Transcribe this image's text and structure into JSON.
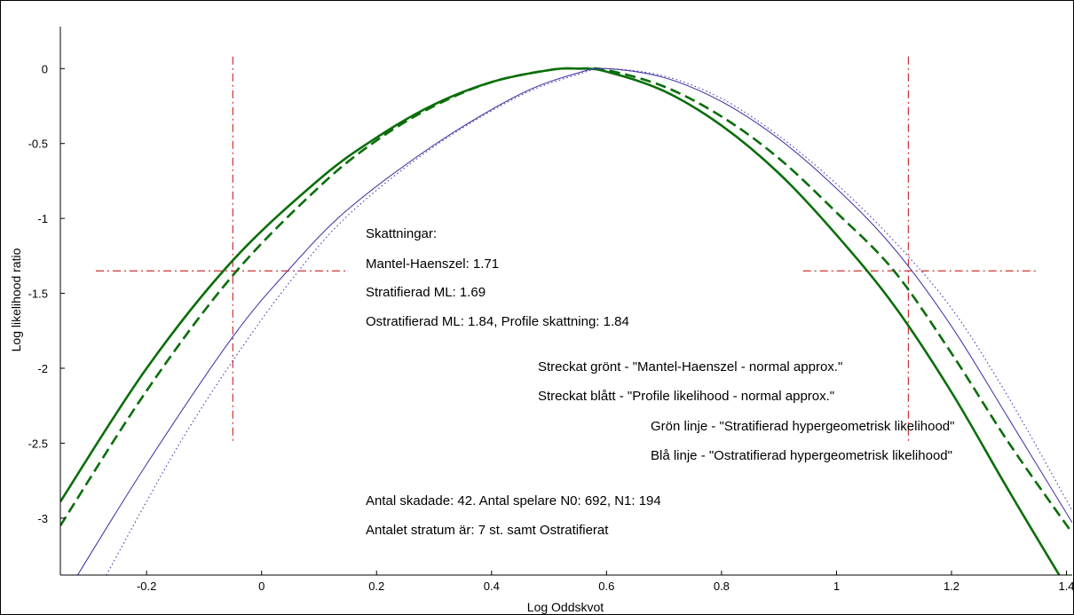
{
  "chart_data": {
    "type": "line",
    "title": "",
    "xlabel": "Log Oddskvot",
    "ylabel": "Log likelihood ratio",
    "xlim": [
      -0.35,
      1.41
    ],
    "ylim": [
      -3.38,
      0.28
    ],
    "xticks": [
      -0.2,
      0,
      0.2,
      0.4,
      0.6,
      0.8,
      1,
      1.2,
      1.4
    ],
    "xtick_labels": [
      "-0.2",
      "0",
      "0.2",
      "0.4",
      "0.6",
      "0.8",
      "1",
      "1.2",
      "1.4"
    ],
    "yticks": [
      0,
      -0.5,
      -1,
      -1.5,
      -2,
      -2.5,
      -3
    ],
    "ytick_labels": [
      "0",
      "-0.5",
      "-1",
      "-1.5",
      "-2",
      "-2.5",
      "-3"
    ],
    "grid": false,
    "colors": {
      "green": "#0a6e0a",
      "blue": "#4a3aa8",
      "reference": "#cc3333"
    },
    "series": [
      {
        "style": "green-solid",
        "x": [
          -0.35,
          -0.2,
          -0.05,
          0.1,
          0.2,
          0.3,
          0.4,
          0.5,
          0.55,
          0.6,
          0.7,
          0.8,
          0.9,
          1.0,
          1.1,
          1.2,
          1.3,
          1.4
        ],
        "y": [
          -2.89,
          -2.0,
          -1.28,
          -0.74,
          -0.46,
          -0.24,
          -0.09,
          -0.01,
          0.0,
          -0.02,
          -0.15,
          -0.38,
          -0.7,
          -1.11,
          -1.58,
          -2.16,
          -2.82,
          -3.46
        ]
      },
      {
        "style": "green-dashed",
        "x": [
          -0.35,
          -0.2,
          -0.05,
          0.1,
          0.2,
          0.3,
          0.4,
          0.5,
          0.55,
          0.6,
          0.7,
          0.8,
          0.9,
          1.0,
          1.1,
          1.2,
          1.3,
          1.41
        ],
        "y": [
          -3.05,
          -2.15,
          -1.38,
          -0.79,
          -0.48,
          -0.25,
          -0.09,
          -0.01,
          0.0,
          -0.01,
          -0.12,
          -0.32,
          -0.6,
          -0.96,
          -1.35,
          -1.9,
          -2.5,
          -3.1
        ]
      },
      {
        "style": "blue-solid",
        "x": [
          -0.32,
          -0.2,
          -0.05,
          0.05,
          0.15,
          0.3,
          0.45,
          0.55,
          0.6,
          0.7,
          0.8,
          0.9,
          1.0,
          1.1,
          1.2,
          1.3,
          1.41
        ],
        "y": [
          -3.38,
          -2.64,
          -1.79,
          -1.33,
          -0.94,
          -0.51,
          -0.17,
          -0.03,
          0.0,
          -0.06,
          -0.22,
          -0.47,
          -0.8,
          -1.2,
          -1.72,
          -2.34,
          -3.03
        ]
      },
      {
        "style": "blue-dotted",
        "x": [
          -0.27,
          -0.15,
          -0.05,
          0.05,
          0.15,
          0.3,
          0.45,
          0.55,
          0.6,
          0.7,
          0.8,
          0.9,
          1.0,
          1.1,
          1.2,
          1.3,
          1.41
        ],
        "y": [
          -3.38,
          -2.55,
          -1.95,
          -1.42,
          -0.98,
          -0.52,
          -0.18,
          -0.04,
          0.0,
          -0.05,
          -0.2,
          -0.45,
          -0.77,
          -1.15,
          -1.6,
          -2.2,
          -2.95
        ]
      }
    ],
    "reference_lines": {
      "horizontal_y": -1.35,
      "horizontal_segments": [
        [
          -0.35,
          0.15
        ],
        [
          0.88,
          1.35
        ]
      ],
      "vertical_x": [
        -0.05,
        1.125
      ],
      "vertical_y_range": [
        -2.5,
        0.08
      ]
    }
  },
  "annotations": [
    "Skattningar:",
    "Mantel-Haenszel: 1.71",
    "Stratifierad ML: 1.69",
    "Ostratifierad ML: 1.84, Profile skattning: 1.84",
    "Streckat grönt - \"Mantel-Haenszel - normal approx.\"",
    "Streckat blått - \"Profile likelihood - normal approx.\"",
    "Grön linje - \"Stratifierad hypergeometrisk likelihood\"",
    "Blå linje - \"Ostratifierad hypergeometrisk likelihood\"",
    "Antal skadade: 42. Antal spelare N0: 692, N1: 194",
    "Antalet stratum är: 7 st. samt Ostratifierat"
  ]
}
